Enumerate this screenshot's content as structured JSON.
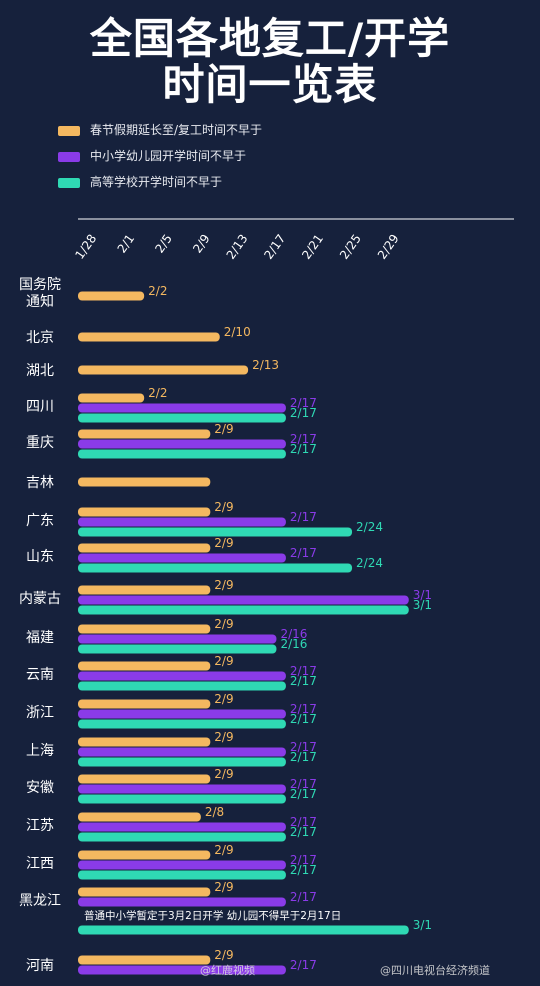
{
  "title": {
    "line1": "全国各地复工/开学",
    "line2": "时间一览表"
  },
  "legend": [
    {
      "label": "春节假期延长至/复工时间不早于",
      "color": "#f4b860"
    },
    {
      "label": "中小学幼儿园开学时间不早于",
      "color": "#8a3be8"
    },
    {
      "label": "高等学校开学时间不早于",
      "color": "#2fd9b4"
    }
  ],
  "watermarks": {
    "left": "@红鹿视频",
    "right": "@四川电视台经济频道"
  },
  "chart_data": {
    "type": "bar",
    "orientation": "horizontal",
    "x_ticks": [
      "1/28",
      "2/1",
      "2/5",
      "2/9",
      "2/13",
      "2/17",
      "2/21",
      "2/25",
      "2/29"
    ],
    "x_tick_days": [
      -4,
      0,
      4,
      8,
      12,
      16,
      20,
      24,
      28
    ],
    "series_names": [
      "春节假期延长至/复工时间不早于",
      "中小学幼儿园开学时间不早于",
      "高等学校开学时间不早于"
    ],
    "rows": [
      {
        "name": "国务院\n通知",
        "bars": [
          {
            "s": 0,
            "end": "2/2",
            "label": "2/2"
          }
        ]
      },
      {
        "name": "北京",
        "bars": [
          {
            "s": 0,
            "end": "2/10",
            "label": "2/10"
          }
        ]
      },
      {
        "name": "湖北",
        "bars": [
          {
            "s": 0,
            "end": "2/13",
            "label": "2/13"
          }
        ]
      },
      {
        "name": "四川",
        "bars": [
          {
            "s": 0,
            "end": "2/2",
            "label": "2/2"
          },
          {
            "s": 1,
            "end": "2/17",
            "label": "2/17"
          },
          {
            "s": 2,
            "end": "2/17",
            "label": "2/17"
          }
        ]
      },
      {
        "name": "重庆",
        "bars": [
          {
            "s": 0,
            "end": "2/9",
            "label": "2/9"
          },
          {
            "s": 1,
            "end": "2/17",
            "label": "2/17"
          },
          {
            "s": 2,
            "end": "2/17",
            "label": "2/17"
          }
        ]
      },
      {
        "name": "吉林",
        "bars": [
          {
            "s": 0,
            "end": "2/9",
            "label": ""
          }
        ]
      },
      {
        "name": "广东",
        "bars": [
          {
            "s": 0,
            "end": "2/9",
            "label": "2/9"
          },
          {
            "s": 1,
            "end": "2/17",
            "label": "2/17"
          },
          {
            "s": 2,
            "end": "2/24",
            "label": "2/24"
          }
        ]
      },
      {
        "name": "山东",
        "bars": [
          {
            "s": 0,
            "end": "2/9",
            "label": "2/9"
          },
          {
            "s": 1,
            "end": "2/17",
            "label": "2/17"
          },
          {
            "s": 2,
            "end": "2/24",
            "label": "2/24"
          }
        ]
      },
      {
        "name": "内蒙古",
        "bars": [
          {
            "s": 0,
            "end": "2/9",
            "label": "2/9"
          },
          {
            "s": 1,
            "end": "3/1",
            "label": "3/1"
          },
          {
            "s": 2,
            "end": "3/1",
            "label": "3/1"
          }
        ]
      },
      {
        "name": "福建",
        "bars": [
          {
            "s": 0,
            "end": "2/9",
            "label": "2/9"
          },
          {
            "s": 1,
            "end": "2/16",
            "label": "2/16"
          },
          {
            "s": 2,
            "end": "2/16",
            "label": "2/16"
          }
        ]
      },
      {
        "name": "云南",
        "bars": [
          {
            "s": 0,
            "end": "2/9",
            "label": "2/9"
          },
          {
            "s": 1,
            "end": "2/17",
            "label": "2/17"
          },
          {
            "s": 2,
            "end": "2/17",
            "label": "2/17"
          }
        ]
      },
      {
        "name": "浙江",
        "bars": [
          {
            "s": 0,
            "end": "2/9",
            "label": "2/9"
          },
          {
            "s": 1,
            "end": "2/17",
            "label": "2/17"
          },
          {
            "s": 2,
            "end": "2/17",
            "label": "2/17"
          }
        ]
      },
      {
        "name": "上海",
        "bars": [
          {
            "s": 0,
            "end": "2/9",
            "label": "2/9"
          },
          {
            "s": 1,
            "end": "2/17",
            "label": "2/17"
          },
          {
            "s": 2,
            "end": "2/17",
            "label": "2/17"
          }
        ]
      },
      {
        "name": "安徽",
        "bars": [
          {
            "s": 0,
            "end": "2/9",
            "label": "2/9"
          },
          {
            "s": 1,
            "end": "2/17",
            "label": "2/17"
          },
          {
            "s": 2,
            "end": "2/17",
            "label": "2/17"
          }
        ]
      },
      {
        "name": "江苏",
        "bars": [
          {
            "s": 0,
            "end": "2/8",
            "label": "2/8"
          },
          {
            "s": 1,
            "end": "2/17",
            "label": "2/17"
          },
          {
            "s": 2,
            "end": "2/17",
            "label": "2/17"
          }
        ]
      },
      {
        "name": "江西",
        "bars": [
          {
            "s": 0,
            "end": "2/9",
            "label": "2/9"
          },
          {
            "s": 1,
            "end": "2/17",
            "label": "2/17"
          },
          {
            "s": 2,
            "end": "2/17",
            "label": "2/17"
          }
        ]
      },
      {
        "name": "黑龙江",
        "note": "普通中小学暂定于3月2日开学 幼儿园不得早于2月17日",
        "bars": [
          {
            "s": 0,
            "end": "2/9",
            "label": "2/9"
          },
          {
            "s": 1,
            "end": "2/17",
            "label": "2/17"
          },
          {
            "s": 2,
            "end": "3/1",
            "label": "3/1"
          }
        ]
      },
      {
        "name": "河南",
        "bars": [
          {
            "s": 0,
            "end": "2/9",
            "label": "2/9"
          },
          {
            "s": 1,
            "end": "2/17",
            "label": "2/17"
          }
        ]
      }
    ]
  }
}
